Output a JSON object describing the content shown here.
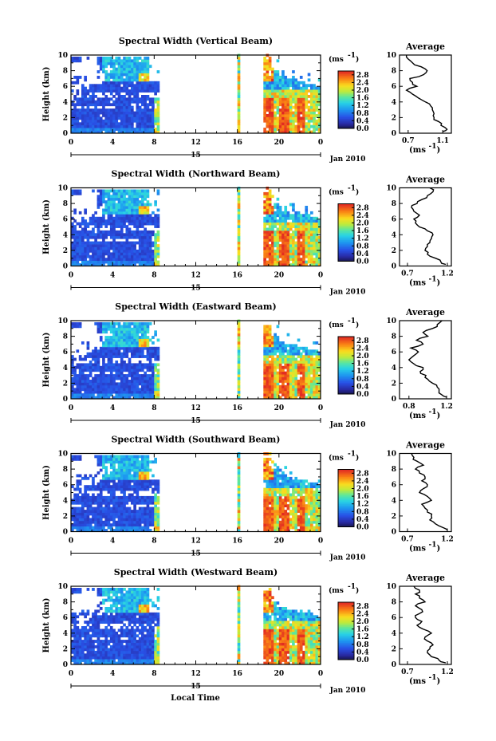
{
  "figure": {
    "xlabel": "Local Time",
    "date_label": "Jan 2010",
    "day_label": "15",
    "ylabel": "Height (km)",
    "unit_label": "(ms",
    "unit_exp": "-1",
    "avg_title": "Average"
  },
  "chart_data": [
    {
      "type": "heatmap",
      "title": "Spectral Width (Vertical Beam)",
      "x_ticks": [
        "0",
        "4",
        "8",
        "12",
        "16",
        "20",
        "0"
      ],
      "xlim": [
        0,
        24
      ],
      "y_ticks": [
        "0",
        "2",
        "4",
        "6",
        "8",
        "10"
      ],
      "ylim": [
        0,
        10
      ],
      "colorbar": {
        "ticks": [
          "0.0",
          "0.4",
          "0.8",
          "1.2",
          "1.6",
          "2.0",
          "2.4",
          "2.8"
        ],
        "range": [
          0,
          3.0
        ]
      },
      "data_gaps_hours": [
        [
          8.5,
          15.9
        ],
        [
          16.2,
          18.5
        ]
      ],
      "average_profile": {
        "x_ticks": [
          "0.7",
          "1.1"
        ],
        "xlim": [
          0.6,
          1.2
        ],
        "heights": [
          0.2,
          0.5,
          1,
          1.5,
          2,
          2.5,
          3,
          3.5,
          4,
          4.5,
          5,
          5.5,
          6,
          6.5,
          7,
          7.5,
          8,
          8.5,
          9,
          9.5,
          10
        ],
        "values": [
          1.1,
          1.15,
          1.08,
          1.05,
          1.0,
          1.0,
          0.98,
          0.96,
          0.9,
          0.82,
          0.75,
          0.68,
          0.8,
          0.75,
          0.72,
          0.88,
          0.92,
          0.85,
          0.75,
          0.7,
          0.68
        ]
      }
    },
    {
      "type": "heatmap",
      "title": "Spectral Width (Northward Beam)",
      "x_ticks": [
        "0",
        "4",
        "8",
        "12",
        "16",
        "20",
        "0"
      ],
      "xlim": [
        0,
        24
      ],
      "y_ticks": [
        "0",
        "2",
        "4",
        "6",
        "8",
        "10"
      ],
      "ylim": [
        0,
        10
      ],
      "colorbar": {
        "ticks": [
          "0.0",
          "0.4",
          "0.8",
          "1.2",
          "1.6",
          "2.0",
          "2.4",
          "2.8"
        ],
        "range": [
          0,
          3.0
        ]
      },
      "data_gaps_hours": [
        [
          8.5,
          15.9
        ],
        [
          16.2,
          18.5
        ]
      ],
      "average_profile": {
        "x_ticks": [
          "0.7",
          "1.2"
        ],
        "xlim": [
          0.6,
          1.25
        ],
        "heights": [
          0.2,
          0.5,
          1,
          1.5,
          2,
          2.5,
          3,
          3.5,
          4,
          4.5,
          5,
          5.5,
          6,
          6.5,
          7,
          7.5,
          8,
          8.5,
          9,
          9.5,
          10
        ],
        "values": [
          1.18,
          1.12,
          1.05,
          0.95,
          0.92,
          0.95,
          0.98,
          1.0,
          1.02,
          0.95,
          0.85,
          0.8,
          0.78,
          0.85,
          0.78,
          0.75,
          0.82,
          0.88,
          0.95,
          1.02,
          0.98
        ]
      }
    },
    {
      "type": "heatmap",
      "title": "Spectral Width (Eastward Beam)",
      "x_ticks": [
        "0",
        "4",
        "8",
        "12",
        "16",
        "20",
        "0"
      ],
      "xlim": [
        0,
        24
      ],
      "y_ticks": [
        "0",
        "2",
        "4",
        "6",
        "8",
        "10"
      ],
      "ylim": [
        0,
        10
      ],
      "colorbar": {
        "ticks": [
          "0.0",
          "0.4",
          "0.8",
          "1.2",
          "1.6",
          "2.0",
          "2.4",
          "2.8"
        ],
        "range": [
          0,
          3.0
        ]
      },
      "data_gaps_hours": [
        [
          8.5,
          15.9
        ],
        [
          16.2,
          18.5
        ]
      ],
      "average_profile": {
        "x_ticks": [
          "0.8",
          "1.2"
        ],
        "xlim": [
          0.7,
          1.25
        ],
        "heights": [
          0.2,
          0.5,
          1,
          1.5,
          2,
          2.5,
          3,
          3.5,
          4,
          4.5,
          5,
          5.5,
          6,
          6.5,
          7,
          7.5,
          8,
          8.5,
          9,
          9.5,
          10
        ],
        "values": [
          1.2,
          1.15,
          1.12,
          1.1,
          1.05,
          1.0,
          0.98,
          0.92,
          0.95,
          0.85,
          0.8,
          0.85,
          0.9,
          0.82,
          0.95,
          0.88,
          1.0,
          0.95,
          1.05,
          1.1,
          1.15
        ]
      }
    },
    {
      "type": "heatmap",
      "title": "Spectral Width (Southward Beam)",
      "x_ticks": [
        "0",
        "4",
        "8",
        "12",
        "16",
        "20",
        "0"
      ],
      "xlim": [
        0,
        24
      ],
      "y_ticks": [
        "0",
        "2",
        "4",
        "6",
        "8",
        "10"
      ],
      "ylim": [
        0,
        10
      ],
      "colorbar": {
        "ticks": [
          "0.0",
          "0.4",
          "0.8",
          "1.2",
          "1.6",
          "2.0",
          "2.4",
          "2.8"
        ],
        "range": [
          0,
          3.0
        ]
      },
      "data_gaps_hours": [
        [
          8.5,
          15.9
        ],
        [
          16.2,
          18.5
        ]
      ],
      "average_profile": {
        "x_ticks": [
          "0.7",
          "1.2"
        ],
        "xlim": [
          0.6,
          1.25
        ],
        "heights": [
          0.2,
          0.5,
          1,
          1.5,
          2,
          2.5,
          3,
          3.5,
          4,
          4.5,
          5,
          5.5,
          6,
          6.5,
          7,
          7.5,
          8,
          8.5,
          9,
          9.5,
          10
        ],
        "values": [
          1.2,
          1.15,
          1.05,
          0.98,
          1.0,
          0.95,
          0.92,
          0.88,
          1.0,
          0.95,
          0.85,
          0.9,
          0.95,
          0.88,
          0.92,
          0.85,
          0.8,
          0.9,
          0.82,
          0.78,
          0.75
        ]
      }
    },
    {
      "type": "heatmap",
      "title": "Spectral Width (Westward Beam)",
      "x_ticks": [
        "0",
        "4",
        "8",
        "12",
        "16",
        "20",
        "0"
      ],
      "xlim": [
        0,
        24
      ],
      "y_ticks": [
        "0",
        "2",
        "4",
        "6",
        "8",
        "10"
      ],
      "ylim": [
        0,
        10
      ],
      "colorbar": {
        "ticks": [
          "0.0",
          "0.4",
          "0.8",
          "1.2",
          "1.6",
          "2.0",
          "2.4",
          "2.8"
        ],
        "range": [
          0,
          3.0
        ]
      },
      "data_gaps_hours": [
        [
          8.5,
          15.9
        ],
        [
          16.2,
          18.5
        ]
      ],
      "average_profile": {
        "x_ticks": [
          "0.7",
          "1.2"
        ],
        "xlim": [
          0.6,
          1.25
        ],
        "heights": [
          0.2,
          0.5,
          1,
          1.5,
          2,
          2.5,
          3,
          3.5,
          4,
          4.5,
          5,
          5.5,
          6,
          6.5,
          7,
          7.5,
          8,
          8.5,
          9,
          9.5,
          10
        ],
        "values": [
          1.18,
          1.1,
          1.0,
          0.95,
          0.98,
          1.02,
          0.95,
          0.92,
          1.0,
          0.9,
          0.82,
          0.88,
          0.8,
          0.85,
          0.88,
          0.8,
          0.92,
          0.85,
          0.8,
          0.85,
          0.78
        ]
      }
    }
  ]
}
